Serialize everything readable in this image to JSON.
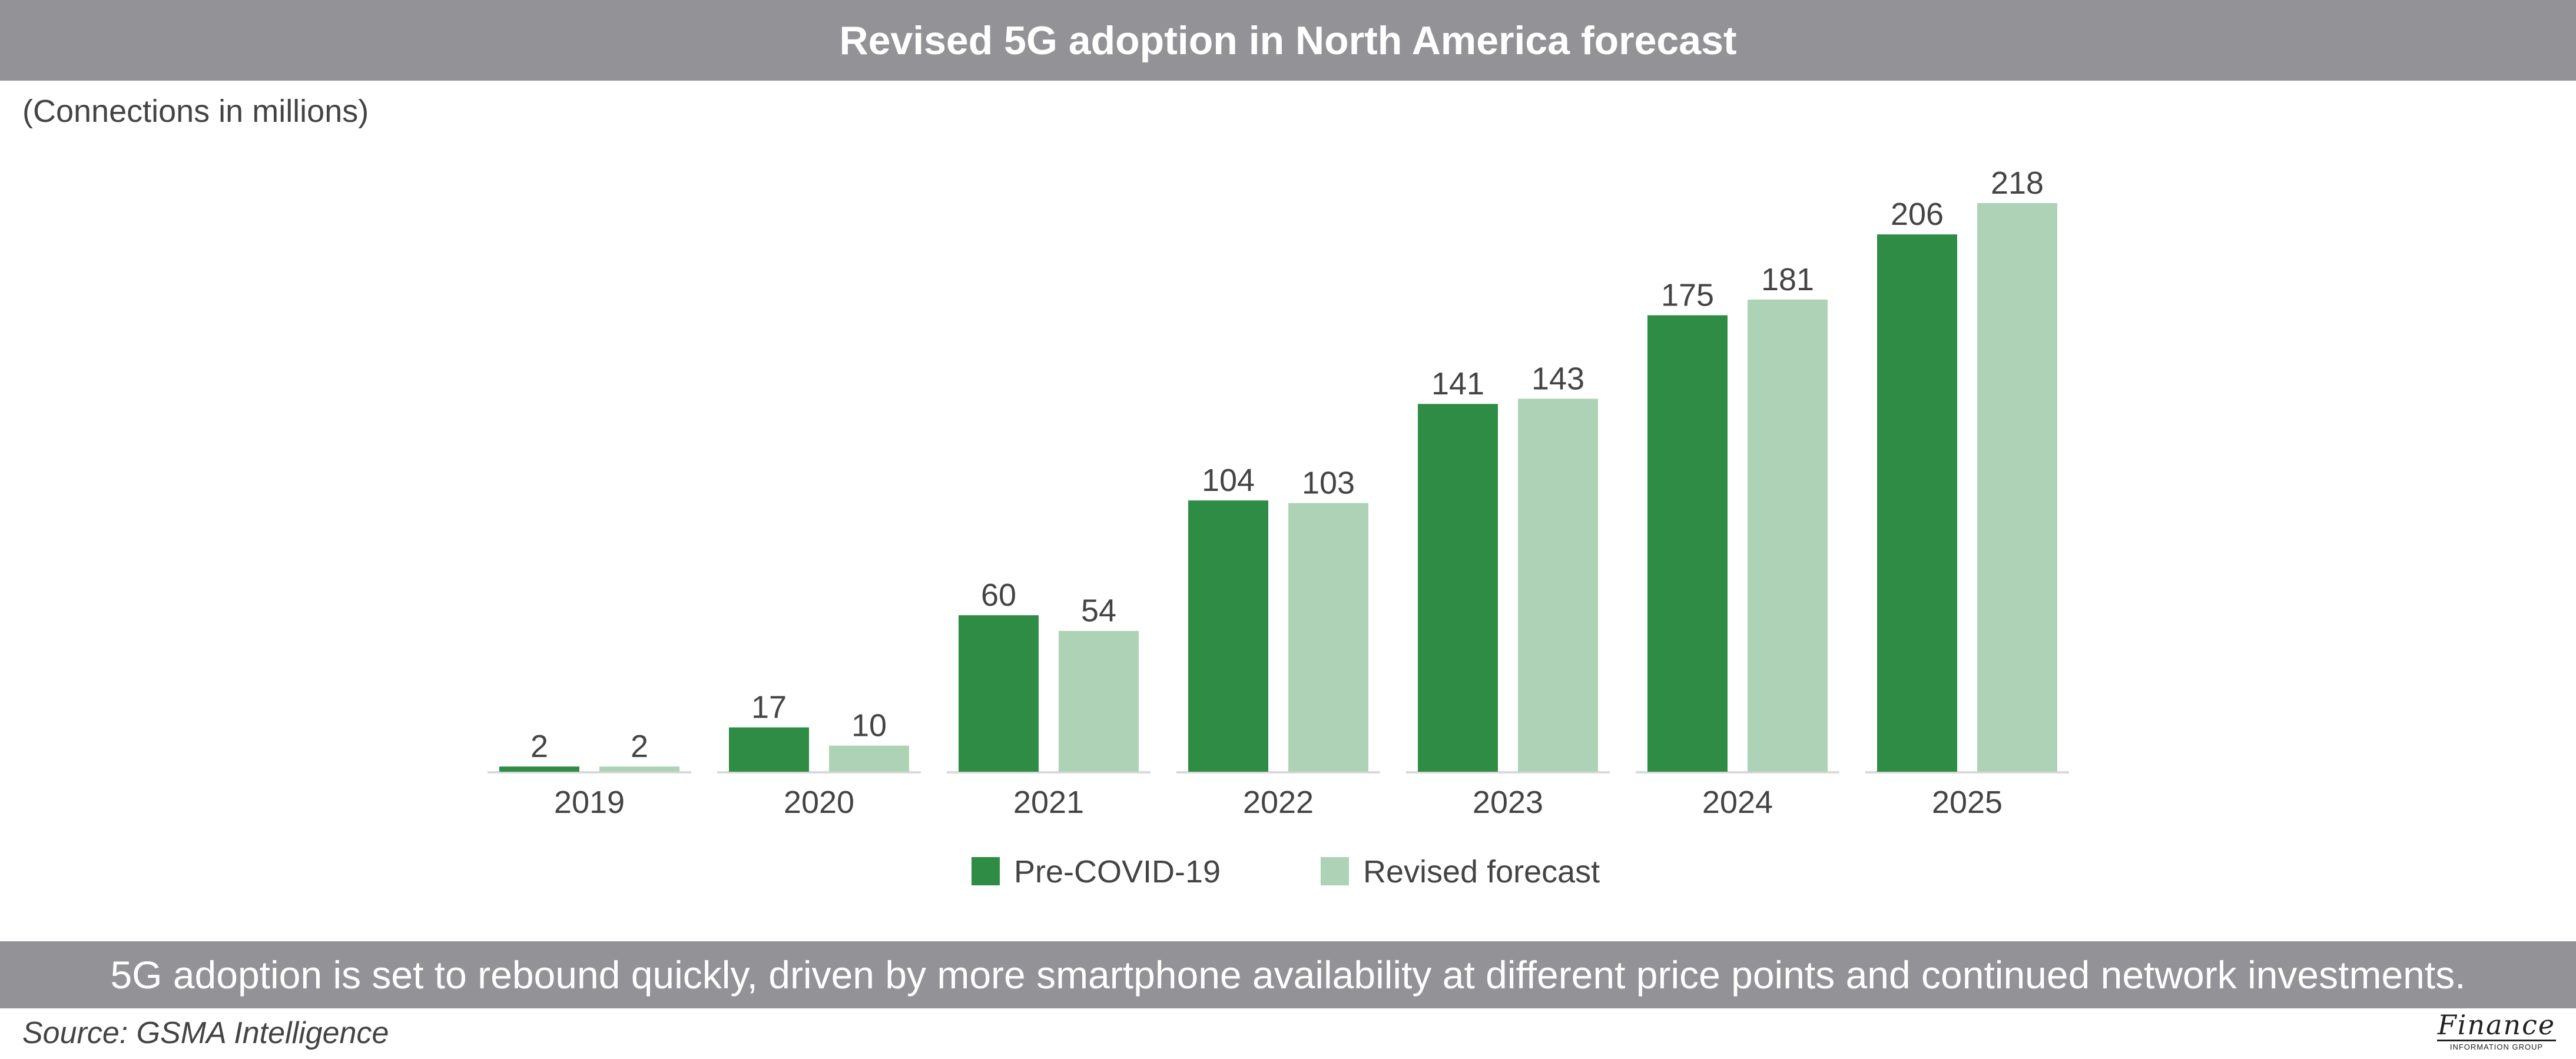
{
  "header": {
    "title": "Revised 5G adoption in North America forecast"
  },
  "units_label": "(Connections in millions)",
  "footer": {
    "takeaway": "5G adoption is set to rebound quickly, driven by more smartphone availability at different price points and continued network investments.",
    "source": "Source: GSMA Intelligence"
  },
  "logo": {
    "word": "Finance",
    "sub": "INFORMATION GROUP"
  },
  "colors": {
    "title_bar": "#939296",
    "pre_covid": "#2f8c44",
    "revised": "#aed2b6",
    "text": "#444444",
    "axis": "#d9d9d9"
  },
  "chart_data": {
    "type": "bar",
    "title": "Revised 5G adoption in North America forecast",
    "ylabel": "(Connections in millions)",
    "xlabel": "",
    "categories": [
      "2019",
      "2020",
      "2021",
      "2022",
      "2023",
      "2024",
      "2025"
    ],
    "series": [
      {
        "name": "Pre-COVID-19",
        "color": "#2f8c44",
        "values": [
          2,
          17,
          60,
          104,
          141,
          175,
          206
        ]
      },
      {
        "name": "Revised forecast",
        "color": "#aed2b6",
        "values": [
          2,
          10,
          54,
          103,
          143,
          181,
          218
        ]
      }
    ],
    "ylim": [
      0,
      218
    ],
    "grid": false,
    "legend_position": "bottom-center"
  }
}
